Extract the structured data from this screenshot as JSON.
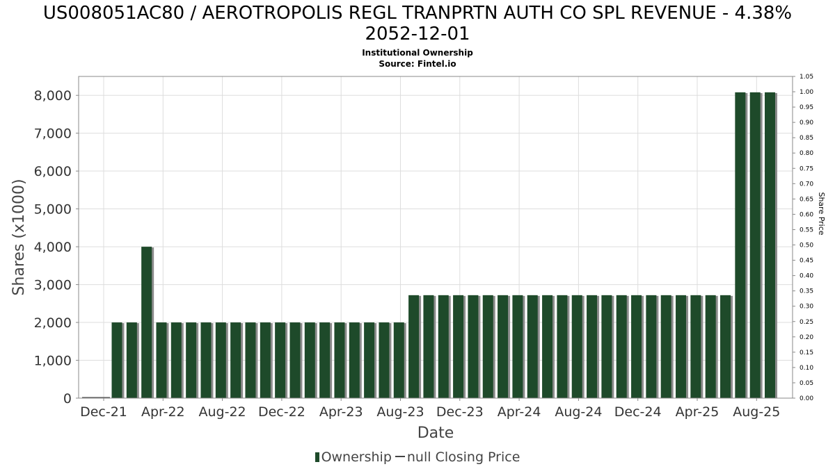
{
  "title_lines": [
    "US008051AC80 / AEROTROPOLIS REGL TRANPRTN AUTH CO SPL REVENUE - 4.38%",
    "2052-12-01"
  ],
  "subtitle_lines": [
    "Institutional Ownership",
    "Source: Fintel.io"
  ],
  "legend": {
    "series1": "Ownership",
    "series2": "null Closing Price"
  },
  "colors": {
    "bar": "#1e4a2a",
    "bar_shadow": "#8c8c8c",
    "grid": "#dddddd",
    "axis": "#888888"
  },
  "chart_data": {
    "type": "bar",
    "xlabel": "Date",
    "ylabel": "Shares (x1000)",
    "y2label": "Share Price",
    "ylim": [
      0,
      8500
    ],
    "y2lim": [
      0,
      1.05
    ],
    "yticks": [
      0,
      1000,
      2000,
      3000,
      4000,
      5000,
      6000,
      7000,
      8000
    ],
    "ytick_labels": [
      "0",
      "1,000",
      "2,000",
      "3,000",
      "4,000",
      "5,000",
      "6,000",
      "7,000",
      "8,000"
    ],
    "y2tick_labels": [
      "0.00",
      "0.05",
      "0.10",
      "0.15",
      "0.20",
      "0.25",
      "0.30",
      "0.35",
      "0.40",
      "0.45",
      "0.50",
      "0.55",
      "0.60",
      "0.65",
      "0.70",
      "0.75",
      "0.80",
      "0.85",
      "0.90",
      "0.95",
      "1.00",
      "1.05"
    ],
    "xtick_labels": [
      "Dec-21",
      "Apr-22",
      "Aug-22",
      "Dec-22",
      "Apr-23",
      "Aug-23",
      "Dec-23",
      "Apr-24",
      "Aug-24",
      "Dec-24",
      "Apr-25",
      "Aug-25"
    ],
    "grid": true,
    "legend_position": "bottom",
    "values": [
      2000,
      2000,
      4000,
      2000,
      2000,
      2000,
      2000,
      2000,
      2000,
      2000,
      2000,
      2000,
      2000,
      2000,
      2000,
      2000,
      2000,
      2000,
      2000,
      2000,
      2720,
      2720,
      2720,
      2720,
      2720,
      2720,
      2720,
      2720,
      2720,
      2720,
      2720,
      2720,
      2720,
      2720,
      2720,
      2720,
      2720,
      2720,
      2720,
      2720,
      2720,
      2720,
      8080,
      8080,
      8080
    ]
  }
}
